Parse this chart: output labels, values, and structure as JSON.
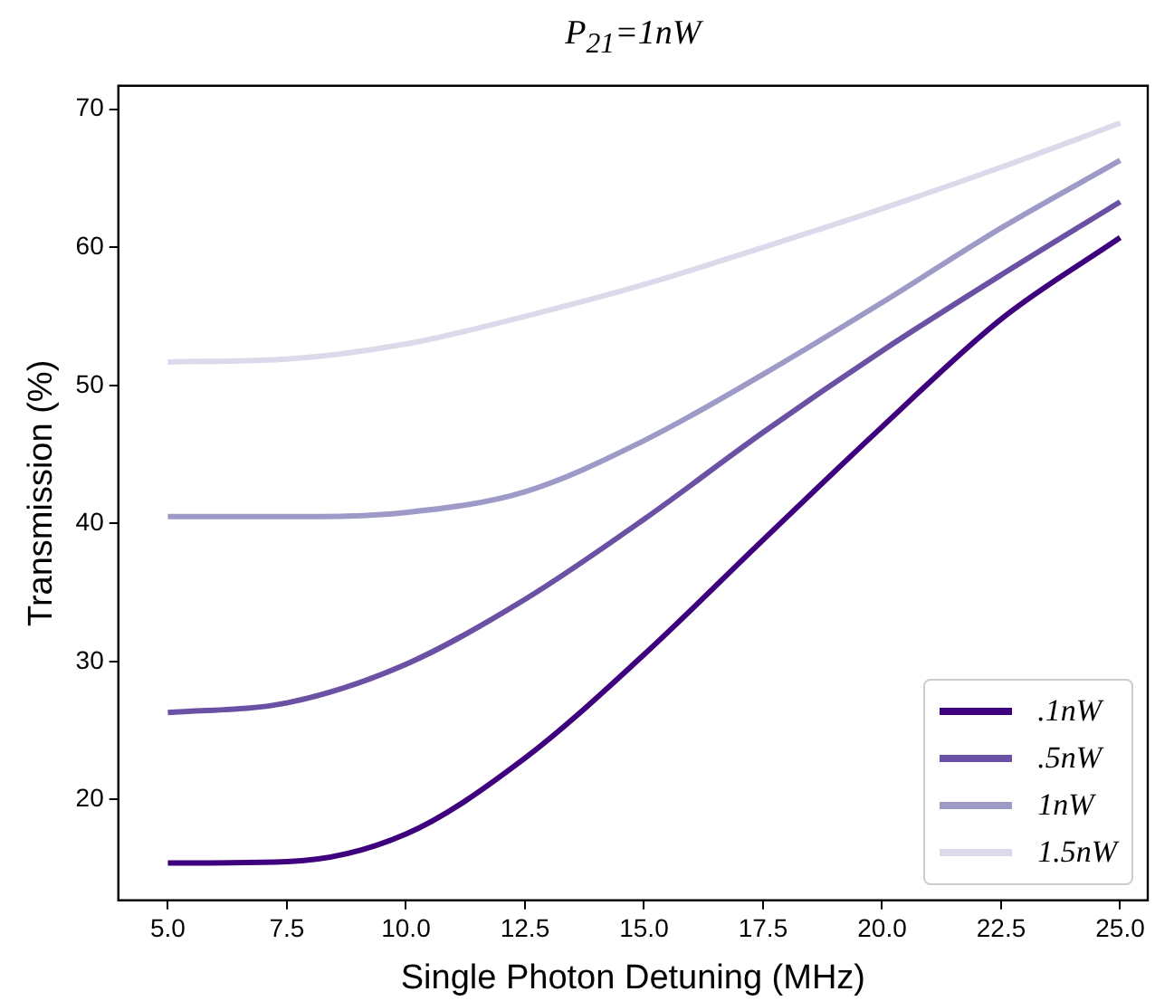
{
  "chart_data": {
    "type": "line",
    "title": "P$_{21}$=1nW",
    "xlabel": "Single Photon Detuning (MHz)",
    "ylabel": "Transmission (%)",
    "x": [
      5,
      7.5,
      10,
      12.5,
      15,
      17.5,
      20,
      22.5,
      25
    ],
    "series": [
      {
        "name": ".1nW",
        "color": "#3f007d",
        "values": [
          15.4,
          15.5,
          17.5,
          23,
          30.5,
          38.8,
          47,
          54.8,
          60.7
        ]
      },
      {
        "name": ".5nW",
        "color": "#6a51a3",
        "values": [
          26.3,
          27,
          29.8,
          34.5,
          40.3,
          46.6,
          52.5,
          58,
          63.3
        ]
      },
      {
        "name": "1nW",
        "color": "#9e9ac8",
        "values": [
          40.5,
          40.5,
          40.8,
          42.3,
          46,
          50.8,
          56,
          61.4,
          66.3
        ]
      },
      {
        "name": "1.5nW",
        "color": "#dadaeb",
        "values": [
          51.7,
          51.9,
          53,
          55,
          57.3,
          60,
          62.8,
          65.8,
          69
        ]
      }
    ],
    "xlim": [
      3.96,
      25.58
    ],
    "ylim": [
      12.7,
      71.7
    ],
    "xticks": [
      {
        "value": 5,
        "label": "5.0"
      },
      {
        "value": 7.5,
        "label": "7.5"
      },
      {
        "value": 10,
        "label": "10.0"
      },
      {
        "value": 12.5,
        "label": "12.5"
      },
      {
        "value": 15,
        "label": "15.0"
      },
      {
        "value": 17.5,
        "label": "17.5"
      },
      {
        "value": 20,
        "label": "20.0"
      },
      {
        "value": 22.5,
        "label": "22.5"
      },
      {
        "value": 25,
        "label": "25.0"
      }
    ],
    "yticks": [
      20,
      30,
      40,
      50,
      60,
      70
    ],
    "grid": false,
    "legend": "bottom right",
    "marker": "none",
    "line_style": "solid"
  }
}
